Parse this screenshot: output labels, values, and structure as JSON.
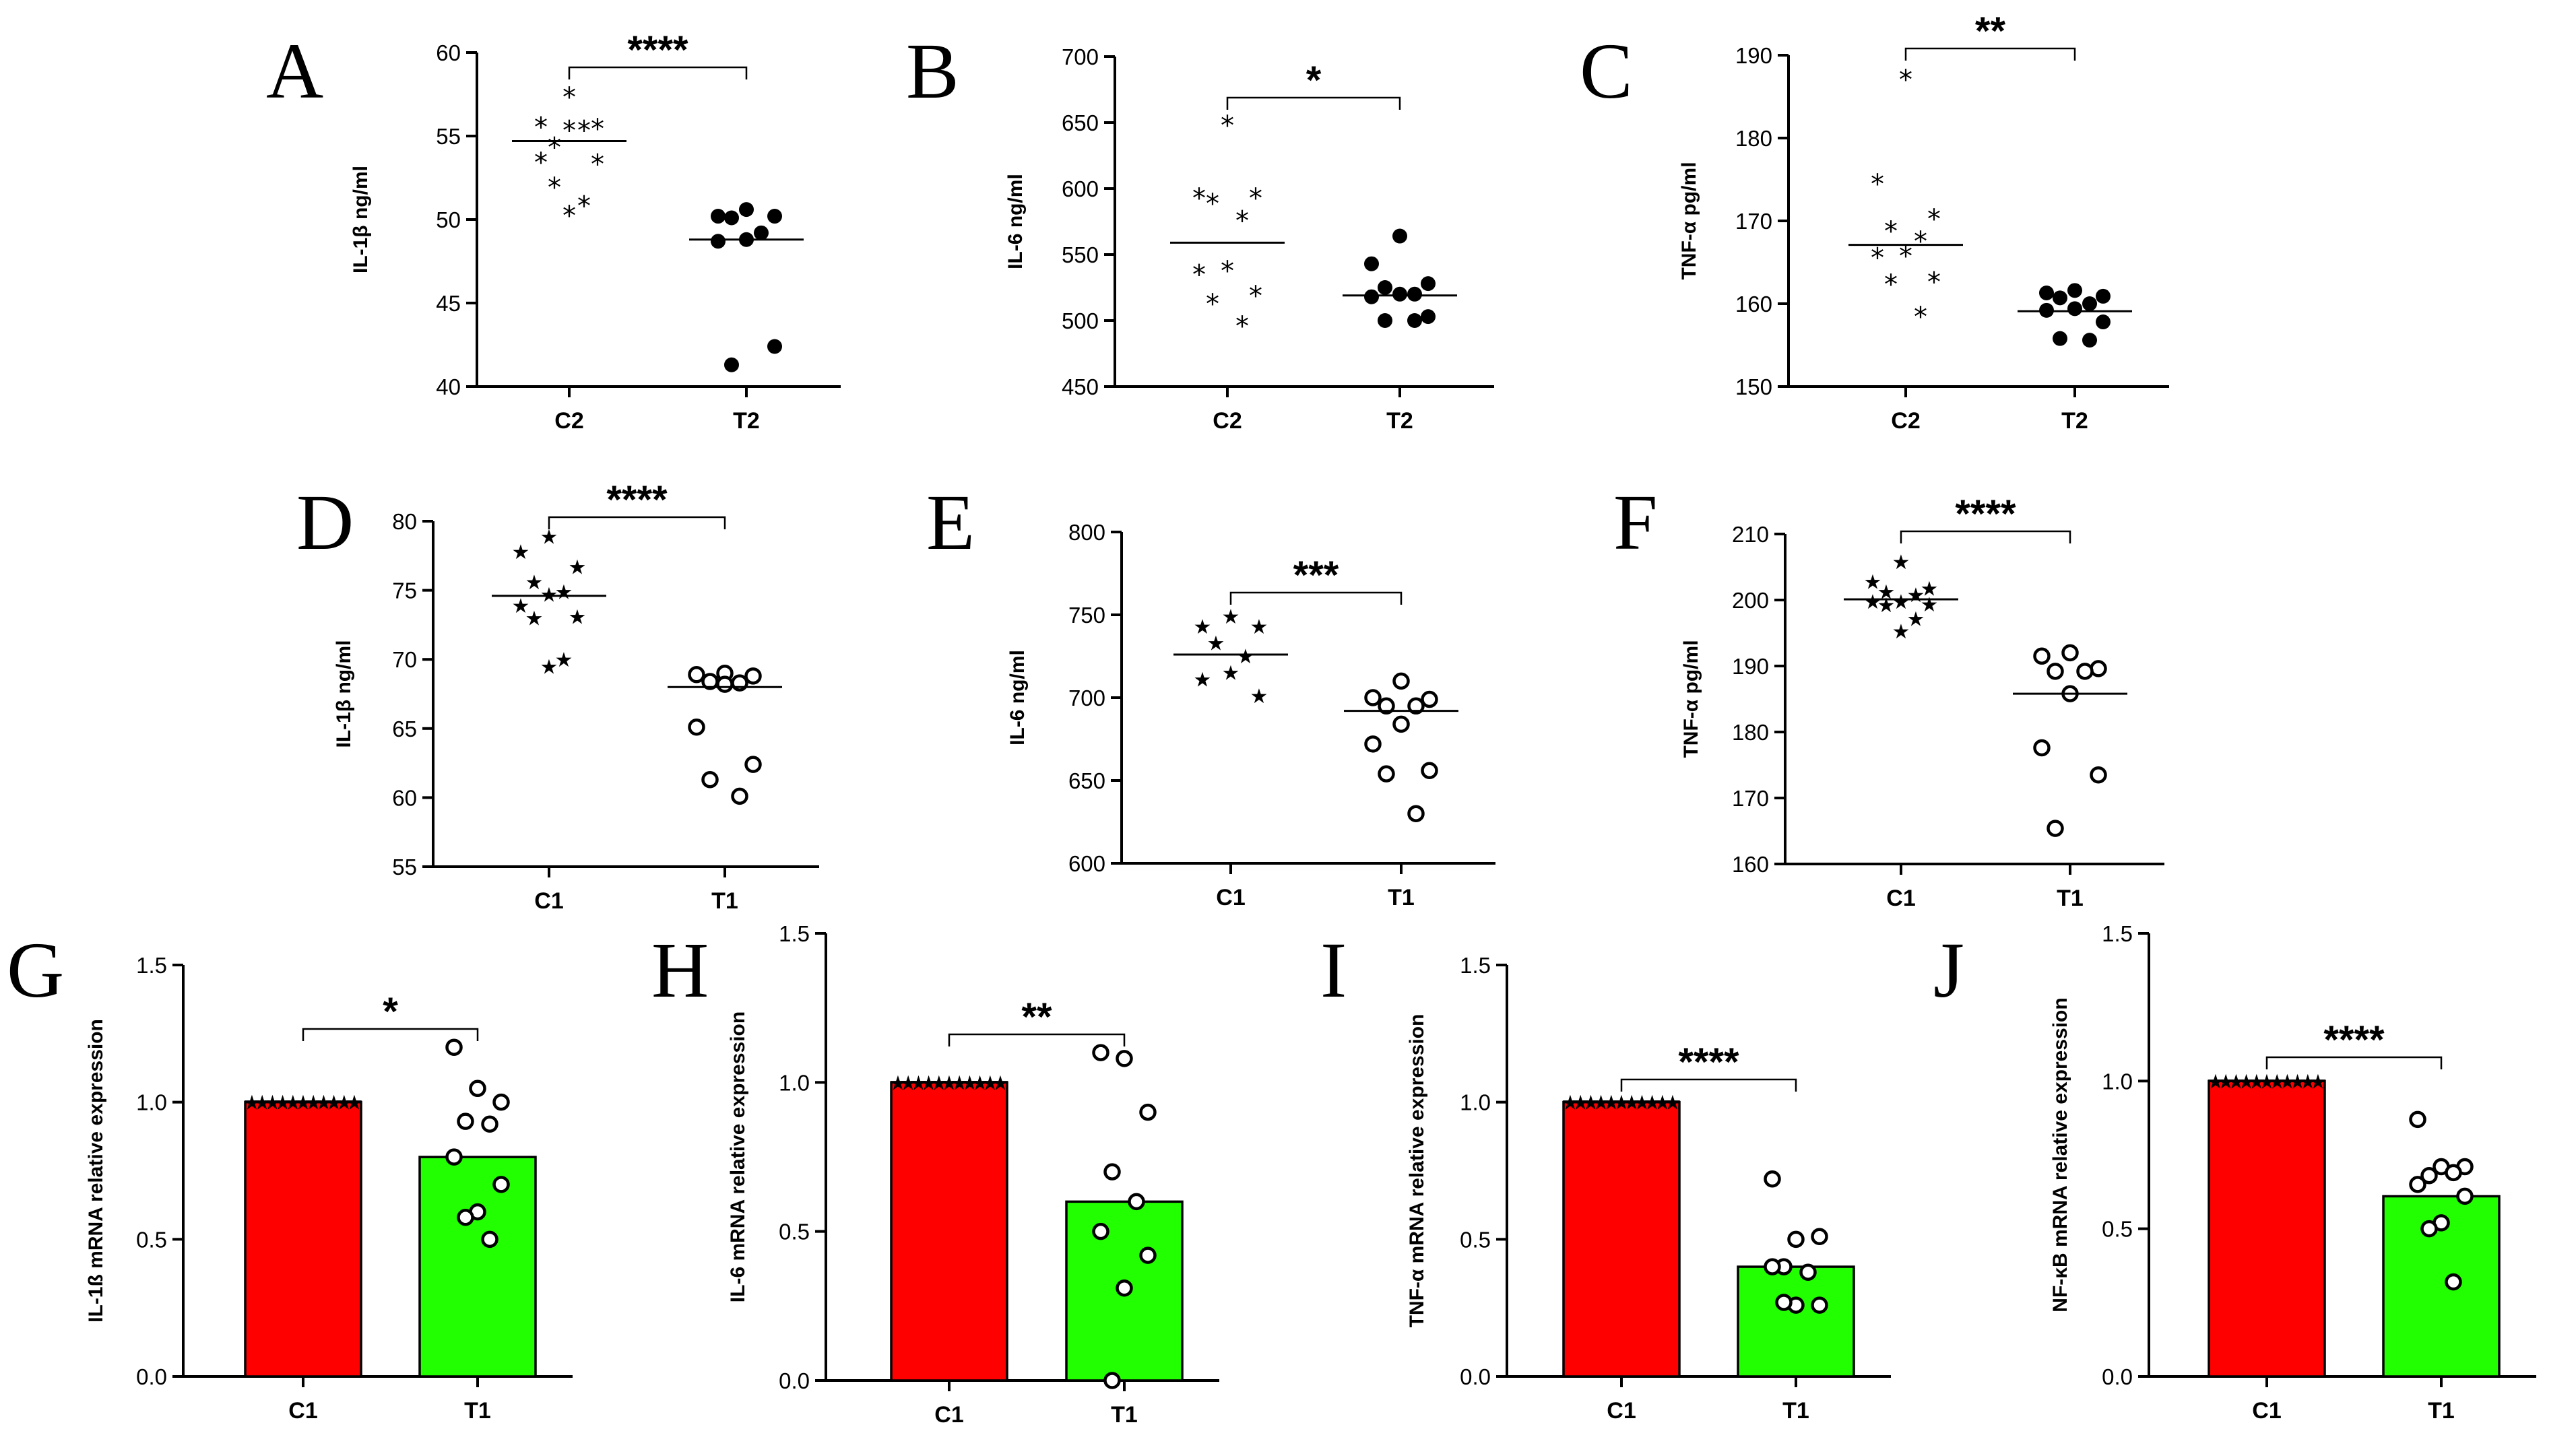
{
  "chart_data": [
    {
      "id": "A",
      "type": "scatter",
      "letter": "A",
      "ylabel": "IL-1β ng/ml",
      "ylim": [
        40,
        60
      ],
      "yticks": [
        40,
        45,
        50,
        55,
        60
      ],
      "categories": [
        "C2",
        "T2"
      ],
      "markers": [
        "asterisk",
        "filled-circle"
      ],
      "means": [
        54.7,
        48.8
      ],
      "significance": "****",
      "values": [
        [
          57.9,
          56.1,
          56.0,
          54.9,
          55.9,
          55.9,
          54.0,
          53.9,
          52.5,
          51.4,
          50.8
        ],
        [
          50.6,
          50.2,
          50.2,
          50.1,
          49.2,
          48.8,
          48.7,
          42.4,
          41.3
        ]
      ]
    },
    {
      "id": "B",
      "type": "scatter",
      "letter": "B",
      "ylabel": "IL-6 ng/ml",
      "ylim": [
        450,
        700
      ],
      "yticks": [
        450,
        500,
        550,
        600,
        650,
        700
      ],
      "categories": [
        "C2",
        "T2"
      ],
      "markers": [
        "asterisk",
        "filled-circle"
      ],
      "means": [
        559,
        519
      ],
      "significance": "*",
      "values": [
        [
          655,
          600,
          600,
          596,
          583,
          545,
          542,
          526,
          520,
          503
        ],
        [
          564,
          543,
          528,
          525,
          520,
          520,
          518,
          503,
          500,
          500
        ]
      ]
    },
    {
      "id": "C",
      "type": "scatter",
      "letter": "C",
      "ylabel": "TNF-α pg/ml",
      "ylim": [
        150,
        190
      ],
      "yticks": [
        150,
        160,
        170,
        180,
        190
      ],
      "categories": [
        "C2",
        "T2"
      ],
      "markers": [
        "asterisk",
        "filled-circle"
      ],
      "means": [
        167.1,
        159.1
      ],
      "significance": "**",
      "values": [
        [
          188.2,
          175.6,
          171.4,
          169.9,
          168.7,
          166.9,
          166.7,
          163.8,
          163.5,
          159.6
        ],
        [
          161.6,
          161.3,
          160.9,
          160.7,
          160.0,
          159.4,
          159.2,
          157.8,
          155.8,
          155.6
        ]
      ]
    },
    {
      "id": "D",
      "type": "scatter",
      "letter": "D",
      "ylabel": "IL-1β ng/ml",
      "ylim": [
        55,
        80
      ],
      "yticks": [
        55,
        60,
        65,
        70,
        75,
        80
      ],
      "categories": [
        "C1",
        "T1"
      ],
      "markers": [
        "star",
        "open-circle"
      ],
      "means": [
        74.6,
        68.0
      ],
      "significance": "****",
      "values": [
        [
          79.0,
          77.9,
          76.8,
          75.7,
          75.0,
          74.8,
          74.0,
          73.2,
          73.1,
          70.1,
          69.6
        ],
        [
          69.0,
          68.9,
          68.8,
          68.4,
          68.3,
          68.2,
          65.1,
          62.4,
          61.3,
          60.1
        ]
      ]
    },
    {
      "id": "E",
      "type": "scatter",
      "letter": "E",
      "ylabel": "IL-6 ng/ml",
      "ylim": [
        600,
        800
      ],
      "yticks": [
        600,
        650,
        700,
        750,
        800
      ],
      "categories": [
        "C1",
        "T1"
      ],
      "markers": [
        "star",
        "open-circle"
      ],
      "means": [
        726,
        692
      ],
      "significance": "***",
      "values": [
        [
          750,
          744,
          744,
          734,
          726,
          716,
          712,
          702
        ],
        [
          710,
          700,
          699,
          695,
          695,
          684,
          672,
          656,
          654,
          630
        ]
      ]
    },
    {
      "id": "F",
      "type": "scatter",
      "letter": "F",
      "ylabel": "TNF-α pg/ml",
      "ylim": [
        160,
        210
      ],
      "yticks": [
        160,
        170,
        180,
        190,
        200,
        210
      ],
      "categories": [
        "C1",
        "T1"
      ],
      "markers": [
        "star",
        "open-circle"
      ],
      "means": [
        200.1,
        185.8
      ],
      "significance": "****",
      "values": [
        [
          206.0,
          203.0,
          202.0,
          201.5,
          201.0,
          200.0,
          200.0,
          199.6,
          199.5,
          197.4,
          195.5
        ],
        [
          192.0,
          191.5,
          189.6,
          189.2,
          189.2,
          185.8,
          177.6,
          173.5,
          165.4
        ]
      ]
    },
    {
      "id": "G",
      "type": "bar",
      "letter": "G",
      "ylabel": "IL-1ß mRNA relative expression",
      "ylim": [
        0,
        1.5
      ],
      "yticks": [
        "0.0",
        "0.5",
        "1.0",
        "1.5"
      ],
      "categories": [
        "C1",
        "T1"
      ],
      "values": [
        1.0,
        0.8
      ],
      "colors": [
        "#ff0000",
        "#22ff00"
      ],
      "significance": "*",
      "points": [
        [
          1,
          1,
          1,
          1,
          1,
          1,
          1,
          1,
          1,
          1,
          1
        ],
        [
          1.2,
          1.05,
          1.0,
          0.93,
          0.92,
          0.8,
          0.7,
          0.6,
          0.58,
          0.5
        ]
      ]
    },
    {
      "id": "H",
      "type": "bar",
      "letter": "H",
      "ylabel": "IL-6 mRNA relative expression",
      "ylim": [
        0,
        1.5
      ],
      "yticks": [
        "0.0",
        "0.5",
        "1.0",
        "1.5"
      ],
      "categories": [
        "C1",
        "T1"
      ],
      "values": [
        1.0,
        0.6
      ],
      "colors": [
        "#ff0000",
        "#22ff00"
      ],
      "significance": "**",
      "points": [
        [
          1,
          1,
          1,
          1,
          1,
          1,
          1,
          1,
          1,
          1,
          1
        ],
        [
          1.1,
          1.08,
          0.9,
          0.7,
          0.6,
          0.5,
          0.42,
          0.31,
          0.0
        ]
      ]
    },
    {
      "id": "I",
      "type": "bar",
      "letter": "I",
      "ylabel": "TNF-α mRNA relative expression",
      "ylim": [
        0,
        1.5
      ],
      "yticks": [
        "0.0",
        "0.5",
        "1.0",
        "1.5"
      ],
      "categories": [
        "C1",
        "T1"
      ],
      "values": [
        1.0,
        0.4
      ],
      "colors": [
        "#ff0000",
        "#22ff00"
      ],
      "significance": "****",
      "points": [
        [
          1,
          1,
          1,
          1,
          1,
          1,
          1,
          1,
          1,
          1,
          1
        ],
        [
          0.72,
          0.5,
          0.51,
          0.4,
          0.38,
          0.4,
          0.26,
          0.26,
          0.27
        ]
      ]
    },
    {
      "id": "J",
      "type": "bar",
      "letter": "J",
      "ylabel": "NF-κB mRNA relative expression",
      "ylim": [
        0,
        1.5
      ],
      "yticks": [
        "0.0",
        "0.5",
        "1.0",
        "1.5"
      ],
      "categories": [
        "C1",
        "T1"
      ],
      "values": [
        1.0,
        0.61
      ],
      "colors": [
        "#ff0000",
        "#22ff00"
      ],
      "significance": "****",
      "points": [
        [
          1,
          1,
          1,
          1,
          1,
          1,
          1,
          1,
          1,
          1,
          1
        ],
        [
          0.87,
          0.71,
          0.71,
          0.68,
          0.69,
          0.65,
          0.61,
          0.52,
          0.5,
          0.32
        ]
      ]
    }
  ]
}
